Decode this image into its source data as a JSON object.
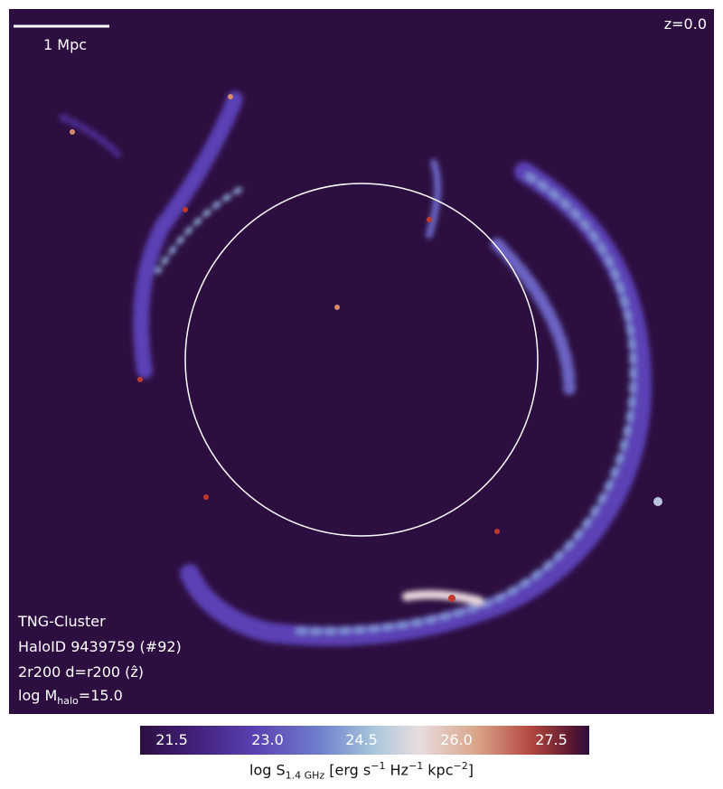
{
  "panel": {
    "scale_bar": "1 Mpc",
    "redshift": "z=0.0",
    "info": [
      "TNG-Cluster",
      "HaloID 9439759 (#92)",
      "2r200 d=r200 (ẑ)"
    ],
    "mass": {
      "prefix": "log M",
      "sub": "halo",
      "suffix": "=15.0"
    }
  },
  "colorbar": {
    "ticks": [
      "21.5",
      "23.0",
      "24.5",
      "26.0",
      "27.5"
    ],
    "label": [
      "log S",
      "1.4 GHz",
      " [erg s",
      "−1",
      " Hz",
      "−1",
      " kpc",
      "−2",
      "]"
    ]
  }
}
